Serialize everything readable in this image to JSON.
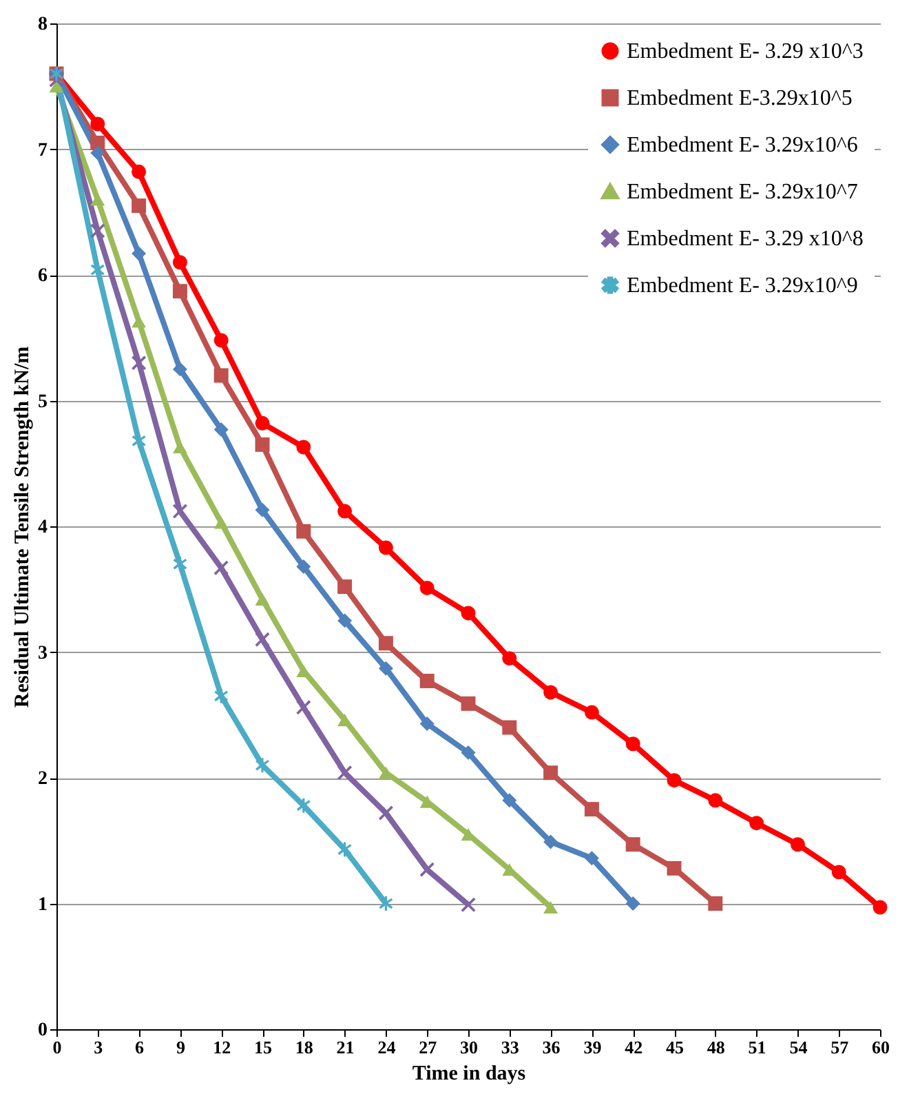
{
  "chart_data": {
    "type": "line",
    "xlabel": "Time in  days",
    "ylabel": "Residual Ultimate Tensile Strength kN/m",
    "xlim": [
      0,
      60
    ],
    "xticks": [
      0,
      3,
      6,
      9,
      12,
      15,
      18,
      21,
      24,
      27,
      30,
      33,
      36,
      39,
      42,
      45,
      48,
      51,
      54,
      57,
      60
    ],
    "ylim": [
      0,
      8
    ],
    "yticks": [
      0,
      1,
      2,
      3,
      4,
      5,
      6,
      7,
      8
    ],
    "grid": "y",
    "legend": "top right",
    "line_style": "solid",
    "series": [
      {
        "name": "Embedment E- 3.29 x10^3",
        "color": "#ff0000",
        "marker": "circle",
        "x": [
          0,
          3,
          6,
          9,
          12,
          15,
          18,
          21,
          24,
          27,
          30,
          33,
          36,
          39,
          42,
          45,
          48,
          51,
          54,
          57,
          60
        ],
        "values": [
          7.6,
          7.2,
          6.82,
          6.1,
          5.48,
          4.82,
          4.63,
          4.12,
          3.83,
          3.51,
          3.31,
          2.95,
          2.68,
          2.52,
          2.27,
          1.98,
          1.82,
          1.64,
          1.47,
          1.25,
          0.97
        ]
      },
      {
        "name": "Embedment E-3.29x10^5",
        "color": "#c0504d",
        "marker": "square",
        "x": [
          0,
          3,
          6,
          9,
          12,
          15,
          18,
          21,
          24,
          27,
          30,
          33,
          36,
          39,
          42,
          45,
          48
        ],
        "values": [
          7.6,
          7.05,
          6.55,
          5.87,
          5.2,
          4.65,
          3.96,
          3.52,
          3.07,
          2.77,
          2.59,
          2.4,
          2.04,
          1.75,
          1.47,
          1.28,
          1.0
        ]
      },
      {
        "name": "Embedment E- 3.29x10^6",
        "color": "#4f81bd",
        "marker": "diamond",
        "x": [
          0,
          3,
          6,
          9,
          12,
          15,
          18,
          21,
          24,
          27,
          30,
          33,
          36,
          39,
          42
        ],
        "values": [
          7.6,
          6.97,
          6.17,
          5.25,
          4.77,
          4.13,
          3.68,
          3.25,
          2.87,
          2.43,
          2.2,
          1.82,
          1.49,
          1.36,
          1.0
        ]
      },
      {
        "name": "Embedment E- 3.29x10^7",
        "color": "#9bbb59",
        "marker": "triangle",
        "x": [
          0,
          3,
          6,
          9,
          12,
          15,
          18,
          21,
          24,
          27,
          30,
          33,
          36
        ],
        "values": [
          7.5,
          6.6,
          5.63,
          4.63,
          4.03,
          3.42,
          2.85,
          2.46,
          2.04,
          1.81,
          1.55,
          1.27,
          0.97
        ]
      },
      {
        "name": "Embedment E- 3.29 x10^8",
        "color": "#8064a2",
        "marker": "cross",
        "x": [
          0,
          3,
          6,
          9,
          12,
          15,
          18,
          21,
          24,
          27,
          30
        ],
        "values": [
          7.55,
          6.35,
          5.3,
          4.12,
          3.67,
          3.1,
          2.56,
          2.04,
          1.72,
          1.27,
          0.99
        ]
      },
      {
        "name": "Embedment E- 3.29x10^9",
        "color": "#4bacc6",
        "marker": "star",
        "x": [
          0,
          3,
          6,
          9,
          12,
          15,
          18,
          21,
          24
        ],
        "values": [
          7.6,
          6.04,
          4.68,
          3.7,
          2.65,
          2.1,
          1.78,
          1.43,
          1.0
        ]
      }
    ]
  }
}
